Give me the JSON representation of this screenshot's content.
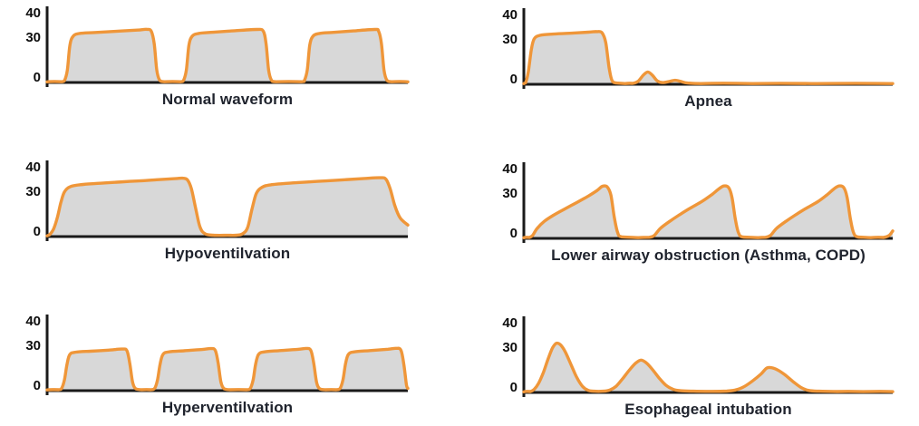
{
  "figure": {
    "bg_color": "#FFFFFF",
    "line_color": "#EF9639",
    "fill_color": "#D8D8D8",
    "axis_color": "#1A1A1A",
    "tick_color": "#0D0D0D",
    "title_color": "#20242E"
  },
  "chart_data": [
    {
      "type": "area",
      "title": "Normal waveform",
      "yticks": [
        40,
        30,
        0
      ],
      "ylim": [
        0,
        45
      ],
      "grid": false,
      "legend": false,
      "points": [
        [
          0,
          0.4
        ],
        [
          4,
          0.5
        ],
        [
          4.8,
          1.2
        ],
        [
          5.6,
          8
        ],
        [
          6.3,
          24
        ],
        [
          7.2,
          30
        ],
        [
          9,
          31.8
        ],
        [
          13,
          32.4
        ],
        [
          19,
          33.2
        ],
        [
          25,
          34
        ],
        [
          27.7,
          34.5
        ],
        [
          28.9,
          33.2
        ],
        [
          29.7,
          25
        ],
        [
          30.4,
          8
        ],
        [
          31.2,
          1.4
        ],
        [
          32.5,
          0.5
        ],
        [
          37,
          0.5
        ],
        [
          37.8,
          1.2
        ],
        [
          38.6,
          8
        ],
        [
          39.3,
          24
        ],
        [
          40.2,
          30
        ],
        [
          42,
          31.8
        ],
        [
          46,
          32.6
        ],
        [
          52,
          33.6
        ],
        [
          58,
          34.4
        ],
        [
          59.9,
          33.4
        ],
        [
          60.7,
          25
        ],
        [
          61.4,
          8
        ],
        [
          62.2,
          1.4
        ],
        [
          63.5,
          0.5
        ],
        [
          70.5,
          0.5
        ],
        [
          71.3,
          1.2
        ],
        [
          72.1,
          8
        ],
        [
          72.8,
          24
        ],
        [
          73.7,
          30
        ],
        [
          75.5,
          31.8
        ],
        [
          79,
          32.5
        ],
        [
          85,
          33.5
        ],
        [
          90.9,
          34.4
        ],
        [
          91.9,
          33.2
        ],
        [
          92.7,
          25
        ],
        [
          93.4,
          8
        ],
        [
          94.2,
          1.4
        ],
        [
          95.5,
          0.5
        ],
        [
          100,
          0.4
        ]
      ]
    },
    {
      "type": "area",
      "title": "Apnea",
      "yticks": [
        40,
        30,
        0
      ],
      "ylim": [
        0,
        45
      ],
      "grid": false,
      "legend": false,
      "points": [
        [
          0,
          0.4
        ],
        [
          0.5,
          1
        ],
        [
          1.2,
          8
        ],
        [
          2,
          22
        ],
        [
          2.8,
          29.5
        ],
        [
          4.5,
          31.8
        ],
        [
          8,
          32.6
        ],
        [
          13,
          33.2
        ],
        [
          17.5,
          33.8
        ],
        [
          19.8,
          34.2
        ],
        [
          21.2,
          33.4
        ],
        [
          22.2,
          27
        ],
        [
          23.1,
          11
        ],
        [
          23.9,
          2.5
        ],
        [
          25.2,
          0.8
        ],
        [
          27.5,
          0.5
        ],
        [
          29.5,
          0.6
        ],
        [
          31,
          2
        ],
        [
          32.4,
          6
        ],
        [
          33.6,
          8
        ],
        [
          34.8,
          6
        ],
        [
          36.2,
          2.2
        ],
        [
          37.6,
          1.1
        ],
        [
          39.4,
          1.8
        ],
        [
          41,
          2.6
        ],
        [
          42.6,
          1.8
        ],
        [
          44.4,
          0.8
        ],
        [
          48,
          0.5
        ],
        [
          62,
          0.45
        ],
        [
          78,
          0.45
        ],
        [
          100,
          0.45
        ]
      ]
    },
    {
      "type": "area",
      "title": "Hypoventilvation",
      "yticks": [
        40,
        30,
        0
      ],
      "ylim": [
        0,
        45
      ],
      "grid": false,
      "legend": false,
      "points": [
        [
          0,
          0.5
        ],
        [
          0.8,
          1.5
        ],
        [
          1.8,
          5
        ],
        [
          2.8,
          12
        ],
        [
          3.8,
          22
        ],
        [
          4.8,
          29
        ],
        [
          6.5,
          32.5
        ],
        [
          10,
          33.8
        ],
        [
          16,
          34.8
        ],
        [
          23,
          35.8
        ],
        [
          30,
          36.8
        ],
        [
          35.5,
          37.6
        ],
        [
          37.6,
          37.9
        ],
        [
          38.9,
          36.8
        ],
        [
          40,
          31
        ],
        [
          41.2,
          18
        ],
        [
          42.4,
          6
        ],
        [
          43.8,
          1.8
        ],
        [
          46,
          0.9
        ],
        [
          50,
          0.8
        ],
        [
          52.5,
          0.9
        ],
        [
          54.2,
          1.8
        ],
        [
          55.6,
          6
        ],
        [
          56.8,
          18
        ],
        [
          58,
          28
        ],
        [
          59.6,
          32
        ],
        [
          62,
          33.6
        ],
        [
          68,
          34.8
        ],
        [
          75,
          35.8
        ],
        [
          82,
          36.8
        ],
        [
          88,
          37.7
        ],
        [
          92.3,
          38.2
        ],
        [
          93.9,
          37.3
        ],
        [
          95.1,
          31
        ],
        [
          96.4,
          20
        ],
        [
          97.9,
          12
        ],
        [
          100,
          7.5
        ]
      ]
    },
    {
      "type": "area",
      "title": "Lower airway obstruction (Asthma, COPD)",
      "yticks": [
        40,
        30,
        0
      ],
      "ylim": [
        0,
        45
      ],
      "grid": false,
      "legend": false,
      "points": [
        [
          0,
          0.4
        ],
        [
          1.5,
          0.6
        ],
        [
          2.4,
          2
        ],
        [
          3.6,
          6.5
        ],
        [
          5.5,
          11
        ],
        [
          8,
          15
        ],
        [
          11,
          19
        ],
        [
          14.5,
          23.5
        ],
        [
          17.5,
          27.5
        ],
        [
          19.8,
          31
        ],
        [
          21.3,
          33.8
        ],
        [
          22.6,
          33.4
        ],
        [
          23.6,
          28
        ],
        [
          24.5,
          14
        ],
        [
          25.4,
          4
        ],
        [
          26.5,
          1
        ],
        [
          31,
          0.5
        ],
        [
          34,
          0.7
        ],
        [
          35.4,
          2
        ],
        [
          37,
          6.5
        ],
        [
          39.5,
          11
        ],
        [
          42,
          15
        ],
        [
          45,
          19.5
        ],
        [
          48.3,
          24
        ],
        [
          51,
          28.5
        ],
        [
          52.8,
          32
        ],
        [
          54.2,
          34
        ],
        [
          55.5,
          33
        ],
        [
          56.4,
          27
        ],
        [
          57.3,
          13
        ],
        [
          58.2,
          3.5
        ],
        [
          59.4,
          0.9
        ],
        [
          63.5,
          0.5
        ],
        [
          65.5,
          0.7
        ],
        [
          66.9,
          2
        ],
        [
          68.5,
          6.5
        ],
        [
          71,
          11
        ],
        [
          73.5,
          15
        ],
        [
          76.5,
          19.5
        ],
        [
          79.8,
          24
        ],
        [
          82.3,
          28.5
        ],
        [
          84,
          32
        ],
        [
          85.4,
          34
        ],
        [
          86.7,
          33
        ],
        [
          87.6,
          27
        ],
        [
          88.5,
          13
        ],
        [
          89.4,
          3.5
        ],
        [
          90.6,
          0.9
        ],
        [
          94,
          0.5
        ],
        [
          97.5,
          0.6
        ],
        [
          99,
          1.8
        ],
        [
          100,
          4.8
        ]
      ]
    },
    {
      "type": "area",
      "title": "Hyperventilvation",
      "yticks": [
        40,
        30,
        0
      ],
      "ylim": [
        0,
        45
      ],
      "grid": false,
      "legend": false,
      "points": [
        [
          0,
          0.5
        ],
        [
          3.2,
          0.6
        ],
        [
          4,
          1.4
        ],
        [
          4.8,
          7
        ],
        [
          5.5,
          17
        ],
        [
          6.3,
          23.5
        ],
        [
          8,
          25
        ],
        [
          12,
          25.6
        ],
        [
          17,
          26.3
        ],
        [
          20.8,
          27
        ],
        [
          22.1,
          26
        ],
        [
          22.9,
          18
        ],
        [
          23.7,
          5.5
        ],
        [
          24.6,
          1.2
        ],
        [
          26.2,
          0.6
        ],
        [
          28.8,
          0.6
        ],
        [
          29.8,
          1.4
        ],
        [
          30.6,
          7
        ],
        [
          31.3,
          17
        ],
        [
          32.1,
          23.5
        ],
        [
          33.8,
          25.2
        ],
        [
          38,
          25.9
        ],
        [
          43,
          26.7
        ],
        [
          45.3,
          27.3
        ],
        [
          46.6,
          26.2
        ],
        [
          47.4,
          18
        ],
        [
          48.2,
          5.5
        ],
        [
          49.1,
          1.2
        ],
        [
          50.7,
          0.6
        ],
        [
          55.3,
          0.6
        ],
        [
          56.3,
          1.4
        ],
        [
          57.1,
          7
        ],
        [
          57.8,
          17
        ],
        [
          58.6,
          23.5
        ],
        [
          60.3,
          25.2
        ],
        [
          64.5,
          26
        ],
        [
          69.5,
          26.8
        ],
        [
          71.8,
          27.4
        ],
        [
          73.1,
          26.2
        ],
        [
          73.9,
          18
        ],
        [
          74.7,
          5.5
        ],
        [
          75.6,
          1.2
        ],
        [
          77.2,
          0.6
        ],
        [
          80.2,
          0.6
        ],
        [
          81.2,
          1.4
        ],
        [
          82,
          7
        ],
        [
          82.7,
          17
        ],
        [
          83.5,
          23.5
        ],
        [
          85.2,
          25.2
        ],
        [
          89.5,
          26
        ],
        [
          94.5,
          26.9
        ],
        [
          96.8,
          27.5
        ],
        [
          98.1,
          26.2
        ],
        [
          98.9,
          17
        ],
        [
          99.6,
          4
        ],
        [
          100,
          1.5
        ]
      ]
    },
    {
      "type": "area",
      "title": "Esophageal intubation",
      "yticks": [
        40,
        30,
        0
      ],
      "ylim": [
        0,
        45
      ],
      "grid": false,
      "legend": false,
      "points": [
        [
          0,
          0.4
        ],
        [
          1.8,
          0.6
        ],
        [
          2.8,
          2
        ],
        [
          4,
          6
        ],
        [
          5.3,
          13
        ],
        [
          6.6,
          22
        ],
        [
          7.8,
          29
        ],
        [
          8.9,
          32
        ],
        [
          10.1,
          30.5
        ],
        [
          11.3,
          26
        ],
        [
          12.8,
          18
        ],
        [
          14.3,
          10
        ],
        [
          15.9,
          4
        ],
        [
          17.4,
          1.4
        ],
        [
          19,
          0.8
        ],
        [
          21.5,
          0.8
        ],
        [
          23.3,
          1.6
        ],
        [
          25,
          4
        ],
        [
          26.8,
          9
        ],
        [
          28.6,
          14.5
        ],
        [
          30.3,
          19
        ],
        [
          31.8,
          21
        ],
        [
          33.3,
          19
        ],
        [
          35,
          14.5
        ],
        [
          36.8,
          9
        ],
        [
          38.6,
          4.5
        ],
        [
          40.5,
          2
        ],
        [
          42.5,
          1.1
        ],
        [
          46,
          0.8
        ],
        [
          51,
          0.7
        ],
        [
          55,
          0.9
        ],
        [
          57.3,
          1.6
        ],
        [
          59.5,
          3.5
        ],
        [
          62,
          7.5
        ],
        [
          64.3,
          12
        ],
        [
          66,
          16
        ],
        [
          68,
          15.5
        ],
        [
          70.5,
          12
        ],
        [
          73,
          7
        ],
        [
          75.3,
          3
        ],
        [
          77.3,
          1.3
        ],
        [
          80,
          0.8
        ],
        [
          85,
          0.6
        ],
        [
          92,
          0.55
        ],
        [
          100,
          0.55
        ]
      ]
    }
  ]
}
